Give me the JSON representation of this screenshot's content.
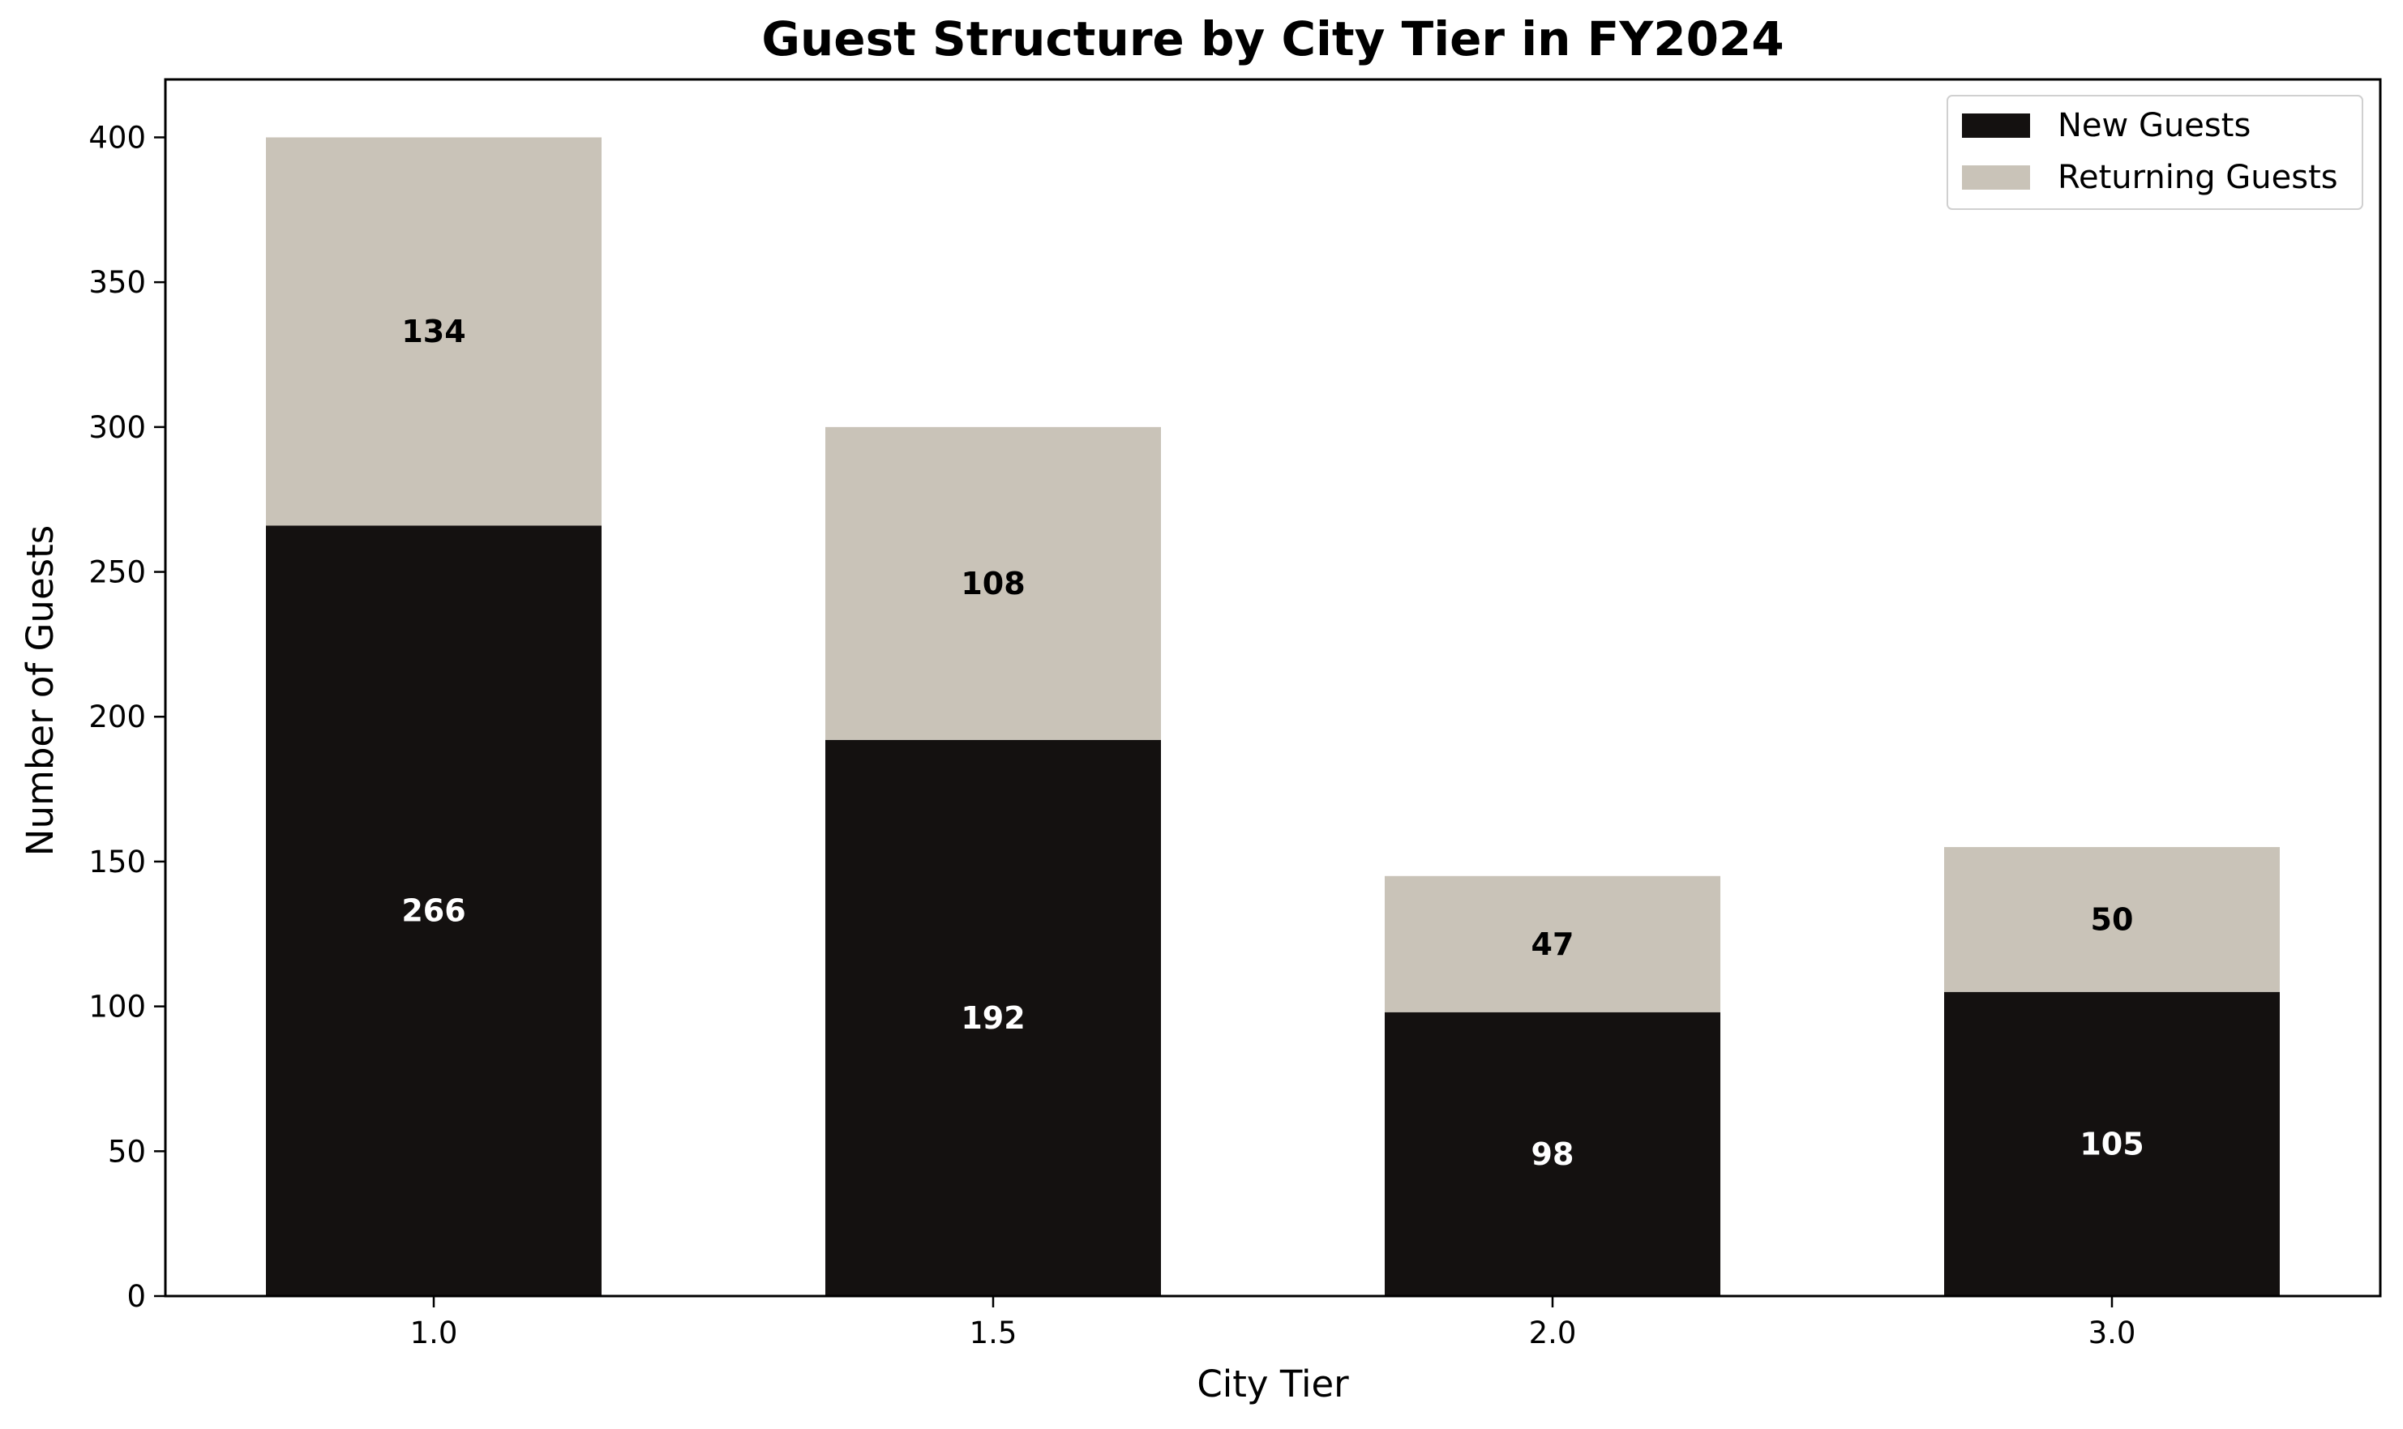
{
  "chart_data": {
    "type": "bar",
    "stacked": true,
    "title": "Guest Structure by City Tier in FY2024",
    "xlabel": "City Tier",
    "ylabel": "Number of Guests",
    "categories": [
      "1.0",
      "1.5",
      "2.0",
      "3.0"
    ],
    "series": [
      {
        "name": "New Guests",
        "values": [
          266,
          192,
          98,
          105
        ],
        "color": "#141110",
        "label_color": "#ffffff"
      },
      {
        "name": "Returning Guests",
        "values": [
          134,
          108,
          47,
          50
        ],
        "color": "#c9c3b8",
        "label_color": "#000000"
      }
    ],
    "ylim": [
      0,
      420
    ],
    "yticks": [
      0,
      50,
      100,
      150,
      200,
      250,
      300,
      350,
      400
    ],
    "grid": false,
    "legend": "top-right"
  }
}
